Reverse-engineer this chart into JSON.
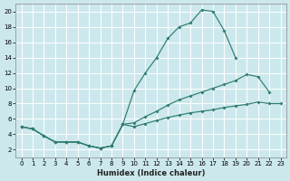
{
  "xlabel": "Humidex (Indice chaleur)",
  "background_color": "#cce8ed",
  "grid_color": "#b8d8de",
  "line_color": "#2e7d6e",
  "xlim": [
    -0.5,
    23.5
  ],
  "ylim": [
    1,
    21
  ],
  "xticks": [
    0,
    1,
    2,
    3,
    4,
    5,
    6,
    7,
    8,
    9,
    10,
    11,
    12,
    13,
    14,
    15,
    16,
    17,
    18,
    19,
    20,
    21,
    22,
    23
  ],
  "yticks": [
    2,
    4,
    6,
    8,
    10,
    12,
    14,
    16,
    18,
    20
  ],
  "line1_x": [
    0,
    1,
    2,
    3,
    4,
    5,
    6,
    7,
    8,
    9,
    10,
    11,
    12,
    13,
    14,
    15,
    16,
    17,
    18,
    19
  ],
  "line1_y": [
    5,
    4.7,
    3.8,
    3.0,
    3.0,
    3.0,
    2.5,
    2.2,
    2.5,
    5.3,
    9.7,
    12.0,
    14.0,
    16.5,
    18.0,
    18.5,
    20.2,
    20.0,
    17.5,
    14.0
  ],
  "line2_x": [
    0,
    1,
    2,
    3,
    4,
    5,
    6,
    7,
    8,
    9,
    10,
    11,
    12,
    13,
    14,
    15,
    16,
    17,
    18,
    19,
    20,
    21,
    22
  ],
  "line2_y": [
    5,
    4.7,
    3.8,
    3.0,
    3.0,
    3.0,
    2.5,
    2.2,
    2.5,
    5.3,
    5.5,
    6.3,
    7.0,
    7.8,
    8.5,
    9.0,
    9.5,
    10.0,
    10.5,
    11.0,
    11.8,
    11.5,
    9.5
  ],
  "line3_x": [
    0,
    1,
    2,
    3,
    4,
    5,
    6,
    7,
    8,
    9,
    10,
    11,
    12,
    13,
    14,
    15,
    16,
    17,
    18,
    19,
    20,
    21,
    22,
    23
  ],
  "line3_y": [
    5,
    4.7,
    3.8,
    3.0,
    3.0,
    3.0,
    2.5,
    2.2,
    2.5,
    5.3,
    5.0,
    5.4,
    5.8,
    6.2,
    6.5,
    6.8,
    7.0,
    7.2,
    7.5,
    7.7,
    7.9,
    8.2,
    8.0,
    8.0
  ]
}
